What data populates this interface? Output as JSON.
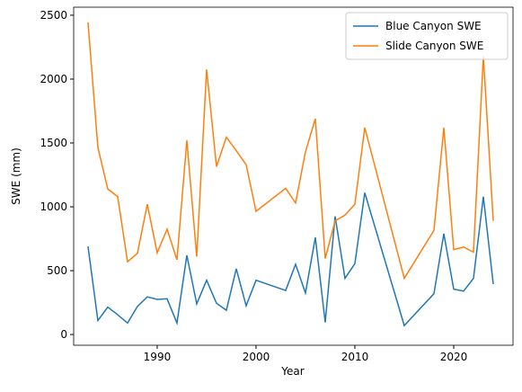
{
  "chart_data": {
    "type": "line",
    "xlabel": "Year",
    "ylabel": "SWE (mm)",
    "x": [
      1983,
      1984,
      1985,
      1986,
      1987,
      1988,
      1989,
      1990,
      1991,
      1992,
      1993,
      1994,
      1995,
      1996,
      1997,
      1998,
      1999,
      2000,
      2003,
      2004,
      2005,
      2006,
      2007,
      2008,
      2009,
      2010,
      2011,
      2015,
      2018,
      2019,
      2020,
      2021,
      2022,
      2023,
      2024
    ],
    "series": [
      {
        "name": "Blue Canyon SWE",
        "color": "#1f77b4",
        "values": [
          690,
          110,
          215,
          155,
          90,
          220,
          295,
          275,
          280,
          90,
          620,
          240,
          425,
          245,
          190,
          515,
          225,
          425,
          345,
          550,
          325,
          760,
          95,
          925,
          440,
          555,
          1110,
          70,
          320,
          790,
          355,
          340,
          440,
          1080,
          395
        ]
      },
      {
        "name": "Slide Canyon SWE",
        "color": "#ff7f0e",
        "values": [
          2445,
          1465,
          1140,
          1080,
          570,
          635,
          1020,
          640,
          825,
          585,
          1520,
          610,
          2075,
          1315,
          1545,
          1440,
          1330,
          965,
          1145,
          1030,
          1430,
          1690,
          595,
          890,
          935,
          1020,
          1620,
          440,
          815,
          1620,
          665,
          685,
          645,
          2180,
          890
        ]
      }
    ],
    "xlim": [
      1981.55,
      2026
    ],
    "ylim": [
      -84,
      2563
    ],
    "xticks": [
      1990,
      2000,
      2010,
      2020
    ],
    "yticks": [
      0,
      500,
      1000,
      1500,
      2000,
      2500
    ],
    "legend": "upper right"
  }
}
